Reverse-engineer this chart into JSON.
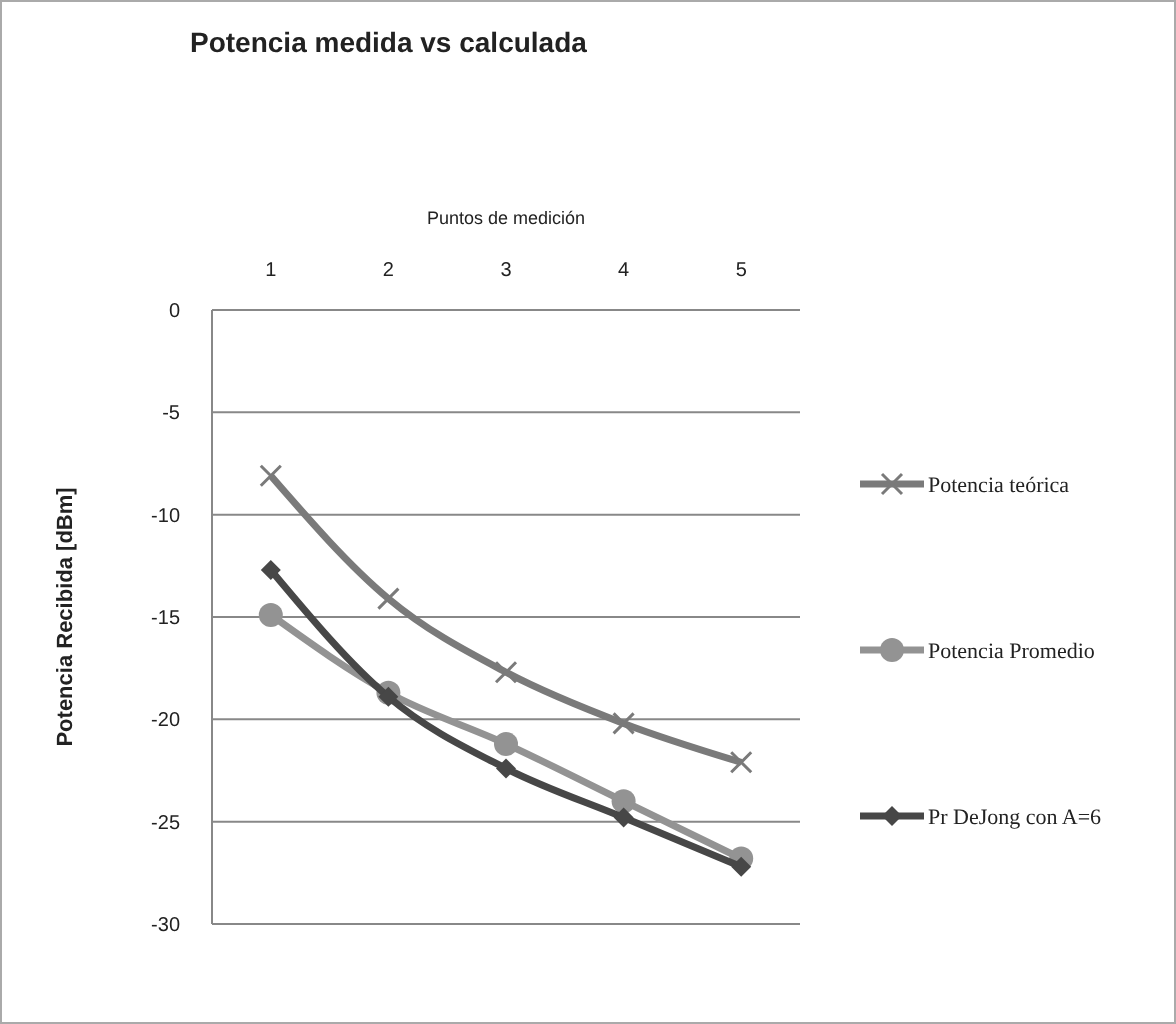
{
  "chart_data": {
    "type": "line",
    "title": "Potencia medida vs calculada",
    "xlabel": "Puntos de medición",
    "ylabel": "Potencia Recibida [dBm]",
    "categories": [
      "1",
      "2",
      "3",
      "4",
      "5"
    ],
    "ylim": [
      -30,
      0
    ],
    "yticks": [
      -30,
      -25,
      -20,
      -15,
      -10,
      -5,
      0
    ],
    "grid": "y",
    "legend": "right",
    "series": [
      {
        "name": "Potencia teórica",
        "color": "#7a7a7a",
        "marker": "cross",
        "values": [
          -8.1,
          -14.1,
          -17.7,
          -20.2,
          -22.1
        ]
      },
      {
        "name": "Potencia Promedio",
        "color": "#939393",
        "marker": "circle",
        "values": [
          -14.9,
          -18.7,
          -21.2,
          -24.0,
          -26.8
        ]
      },
      {
        "name": "Pr DeJong con A=6",
        "color": "#474747",
        "marker": "diamond",
        "values": [
          -12.7,
          -18.9,
          -22.4,
          -24.8,
          -27.2
        ]
      }
    ]
  }
}
